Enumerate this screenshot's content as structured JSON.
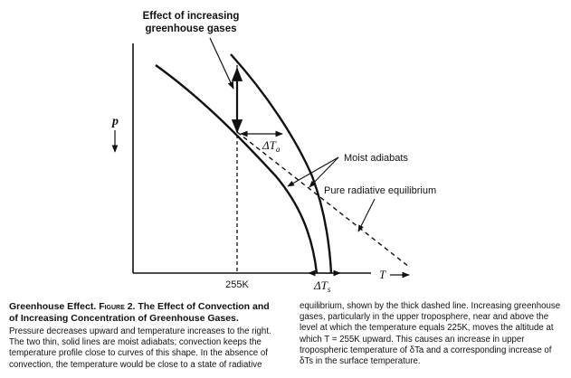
{
  "figure": {
    "top_label": [
      "Effect of increasing",
      "greenhouse gases"
    ],
    "y_axis_label": "p",
    "x_axis_label": "T",
    "tick_255k": "255K",
    "delta_ta_base": "ΔT",
    "delta_ta_sub": "a",
    "delta_ts_base": "ΔT",
    "delta_ts_sub": "s",
    "moist_adiabats_label": "Moist adiabats",
    "radiative_label": "Pure radiative equilibrium"
  },
  "caption": {
    "title_lead": "Greenhouse Effect.",
    "title_fig": "Figure 2.",
    "title_rest": "The Effect of Convection and of Increasing Concentration of Greenhouse Gases.",
    "left_text": "Pressure decreases upward and temperature increases to the right. The two thin, solid lines are moist adiabats; convection keeps the temperature profile close to curves of this shape. In the absence of convection, the temperature would be close to a state of radiative",
    "right_text": "equilibrium, shown by the thick dashed line. Increasing greenhouse gases, particularly in the upper troposphere, near and above the level at which the temperature equals 225K, moves the altitude at which T = 255K upward. This causes an increase in upper tropospheric temperature of δTa and a corresponding increase of δTs in the surface temperature."
  }
}
